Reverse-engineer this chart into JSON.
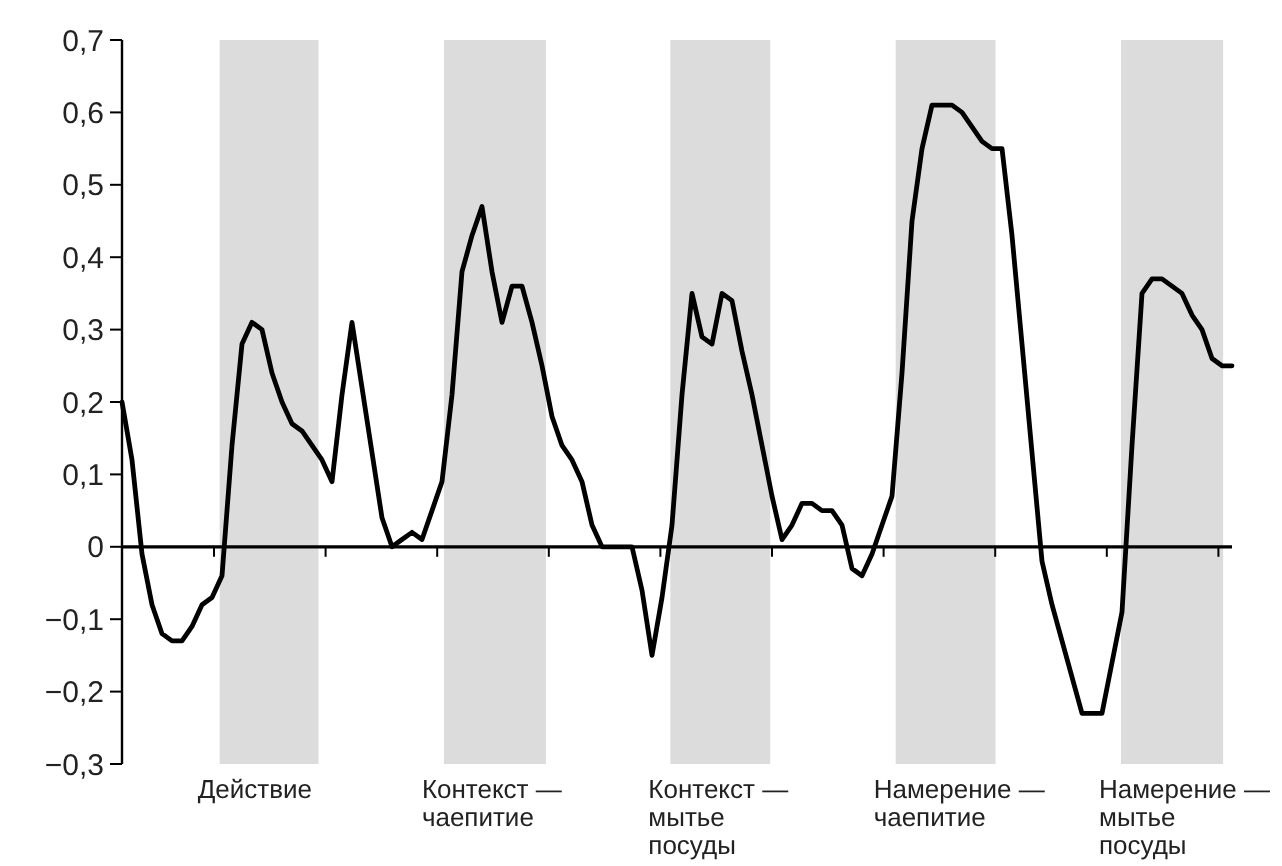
{
  "chart_data": {
    "type": "line",
    "categories": [
      null,
      null,
      null,
      null,
      null,
      null,
      null,
      null,
      null,
      null,
      null,
      null,
      null,
      null,
      null,
      null,
      null,
      null,
      null,
      null,
      null,
      null,
      null,
      null,
      null,
      null,
      null,
      null,
      null,
      null,
      null,
      null,
      null,
      null,
      null,
      null,
      null,
      null,
      null,
      null,
      null,
      null,
      null,
      null,
      null,
      null,
      null,
      null,
      null,
      null,
      null,
      null,
      null,
      null,
      null,
      null,
      null,
      null,
      null,
      null,
      null,
      null,
      null,
      null,
      null,
      null,
      null,
      null,
      null,
      null,
      null,
      null,
      null,
      null,
      null,
      null,
      null,
      null,
      null,
      null,
      null,
      null,
      null,
      null,
      null,
      null,
      null,
      null,
      null,
      null,
      null,
      null,
      null,
      null,
      null,
      null,
      null,
      null,
      null,
      null,
      null,
      null,
      null,
      null,
      null,
      null,
      null,
      null,
      null,
      null,
      null,
      null
    ],
    "series": [
      {
        "color": "#000000",
        "values": [
          0.2,
          0.12,
          -0.01,
          -0.08,
          -0.12,
          -0.13,
          -0.13,
          -0.11,
          -0.08,
          -0.07,
          -0.04,
          0.14,
          0.28,
          0.31,
          0.3,
          0.24,
          0.2,
          0.17,
          0.16,
          0.14,
          0.12,
          0.09,
          0.21,
          0.31,
          0.22,
          0.13,
          0.04,
          0.0,
          0.01,
          0.02,
          0.01,
          0.05,
          0.09,
          0.21,
          0.38,
          0.43,
          0.47,
          0.38,
          0.31,
          0.36,
          0.36,
          0.31,
          0.25,
          0.18,
          0.14,
          0.12,
          0.09,
          0.03,
          0.0,
          0.0,
          0.0,
          0.0,
          -0.06,
          -0.15,
          -0.07,
          0.03,
          0.21,
          0.35,
          0.29,
          0.28,
          0.35,
          0.34,
          0.27,
          0.21,
          0.14,
          0.07,
          0.01,
          0.03,
          0.06,
          0.06,
          0.05,
          0.05,
          0.03,
          -0.03,
          -0.04,
          -0.01,
          0.03,
          0.07,
          0.24,
          0.45,
          0.55,
          0.61,
          0.61,
          0.61,
          0.6,
          0.58,
          0.56,
          0.55,
          0.55,
          0.43,
          0.28,
          0.13,
          -0.02,
          -0.08,
          -0.13,
          -0.18,
          -0.23,
          -0.23,
          -0.23,
          -0.16,
          -0.09,
          0.14,
          0.35,
          0.37,
          0.37,
          0.36,
          0.35,
          0.32,
          0.3,
          0.26,
          0.25,
          0.25
        ]
      }
    ],
    "ylim": [
      -0.3,
      0.7
    ],
    "yticks": [
      {
        "value": -0.3,
        "label": "−0,3"
      },
      {
        "value": -0.2,
        "label": "−0,2"
      },
      {
        "value": -0.1,
        "label": "−0,1"
      },
      {
        "value": 0,
        "label": "0"
      },
      {
        "value": 0.1,
        "label": "0,1"
      },
      {
        "value": 0.2,
        "label": "0,2"
      },
      {
        "value": 0.3,
        "label": "0,3"
      },
      {
        "value": 0.4,
        "label": "0,4"
      },
      {
        "value": 0.5,
        "label": "0,5"
      },
      {
        "value": 0.6,
        "label": "0,6"
      },
      {
        "value": 0.7,
        "label": "0,7"
      }
    ],
    "annotations": [
      "Действие",
      "Контекст — чаепитие",
      "Контекст — мытье посуды",
      "Намерение — чаепитие",
      "Намерение — мытье посуды"
    ],
    "marker": "none",
    "line_style": "solid"
  }
}
